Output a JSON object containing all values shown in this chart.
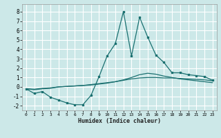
{
  "xlabel": "Humidex (Indice chaleur)",
  "ylabel": "",
  "bg_color": "#cce8e8",
  "grid_color": "#ffffff",
  "line_color": "#1a7070",
  "xlim": [
    -0.5,
    23.5
  ],
  "ylim": [
    -2.5,
    8.8
  ],
  "xticks": [
    0,
    1,
    2,
    3,
    4,
    5,
    6,
    7,
    8,
    9,
    10,
    11,
    12,
    13,
    14,
    15,
    16,
    17,
    18,
    19,
    20,
    21,
    22,
    23
  ],
  "yticks": [
    -2,
    -1,
    0,
    1,
    2,
    3,
    4,
    5,
    6,
    7,
    8
  ],
  "line1_x": [
    0,
    1,
    2,
    3,
    4,
    5,
    6,
    7,
    8,
    9,
    10,
    11,
    12,
    13,
    14,
    15,
    16,
    17,
    18,
    19,
    20,
    21,
    22,
    23
  ],
  "line1_y": [
    -0.2,
    -0.7,
    -0.5,
    -1.1,
    -1.4,
    -1.7,
    -1.9,
    -1.9,
    -0.9,
    1.1,
    3.3,
    4.6,
    8.0,
    3.3,
    7.4,
    5.3,
    3.4,
    2.6,
    1.5,
    1.5,
    1.3,
    1.2,
    1.1,
    0.7
  ],
  "line2_x": [
    0,
    1,
    2,
    3,
    4,
    5,
    6,
    7,
    8,
    9,
    10,
    11,
    12,
    13,
    14,
    15,
    16,
    17,
    18,
    19,
    20,
    21,
    22,
    23
  ],
  "line2_y": [
    -0.2,
    -0.3,
    -0.2,
    -0.15,
    0.0,
    0.05,
    0.1,
    0.15,
    0.25,
    0.35,
    0.45,
    0.55,
    0.7,
    0.85,
    0.95,
    1.0,
    1.0,
    0.95,
    0.95,
    0.9,
    0.85,
    0.8,
    0.75,
    0.65
  ],
  "line3_x": [
    0,
    1,
    2,
    3,
    4,
    5,
    6,
    7,
    8,
    9,
    10,
    11,
    12,
    13,
    14,
    15,
    16,
    17,
    18,
    19,
    20,
    21,
    22,
    23
  ],
  "line3_y": [
    -0.2,
    -0.25,
    -0.15,
    -0.1,
    0.0,
    0.05,
    0.1,
    0.15,
    0.2,
    0.3,
    0.4,
    0.55,
    0.75,
    1.0,
    1.3,
    1.45,
    1.35,
    1.15,
    1.0,
    0.85,
    0.75,
    0.65,
    0.55,
    0.45
  ]
}
